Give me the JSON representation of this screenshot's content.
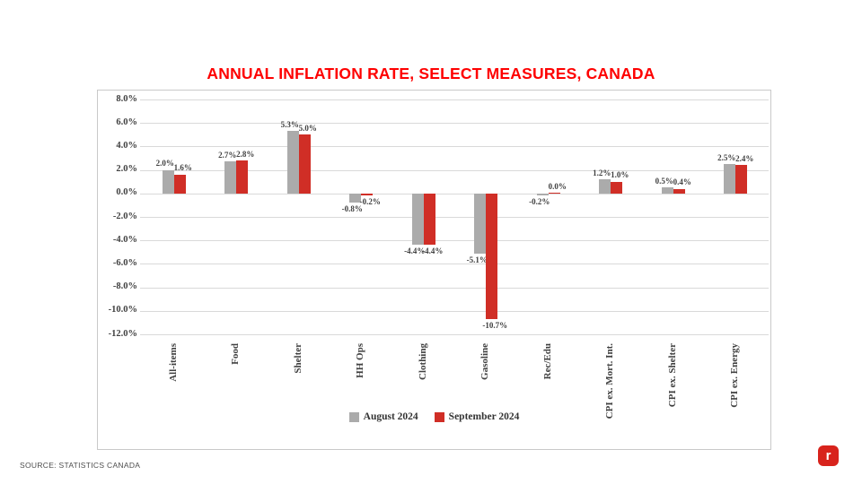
{
  "title": "ANNUAL INFLATION RATE, SELECT MEASURES, CANADA",
  "source_note": "SOURCE: STATISTICS CANADA",
  "logo_letter": "r",
  "colors": {
    "title": "#FE0000",
    "august": "#ABABAB",
    "september": "#D02E26",
    "logo_bg": "#D8231C",
    "label_text": "#404040"
  },
  "chart_data": {
    "type": "bar",
    "title": "ANNUAL INFLATION RATE, SELECT MEASURES, CANADA",
    "categories": [
      "All-items",
      "Food",
      "Shelter",
      "HH Ops",
      "Clothing",
      "Gasoline",
      "Rec/Edu",
      "CPI ex. Mort. Int.",
      "CPI ex. Shelter",
      "CPI ex. Energy"
    ],
    "series": [
      {
        "name": "August 2024",
        "color": "#ABABAB",
        "values": [
          2.0,
          2.7,
          5.3,
          -0.8,
          -4.4,
          -5.1,
          -0.2,
          1.2,
          0.5,
          2.5
        ]
      },
      {
        "name": "September 2024",
        "color": "#D02E26",
        "values": [
          1.6,
          2.8,
          5.0,
          -0.2,
          -4.4,
          -10.7,
          0.0,
          1.0,
          0.4,
          2.4
        ]
      }
    ],
    "ylim": [
      -12,
      8
    ],
    "ytick_step": 2,
    "ytick_format": "percent_one_decimal",
    "grid": true,
    "data_labels": true,
    "legend_position": "bottom-center",
    "xlabel": "",
    "ylabel": ""
  }
}
